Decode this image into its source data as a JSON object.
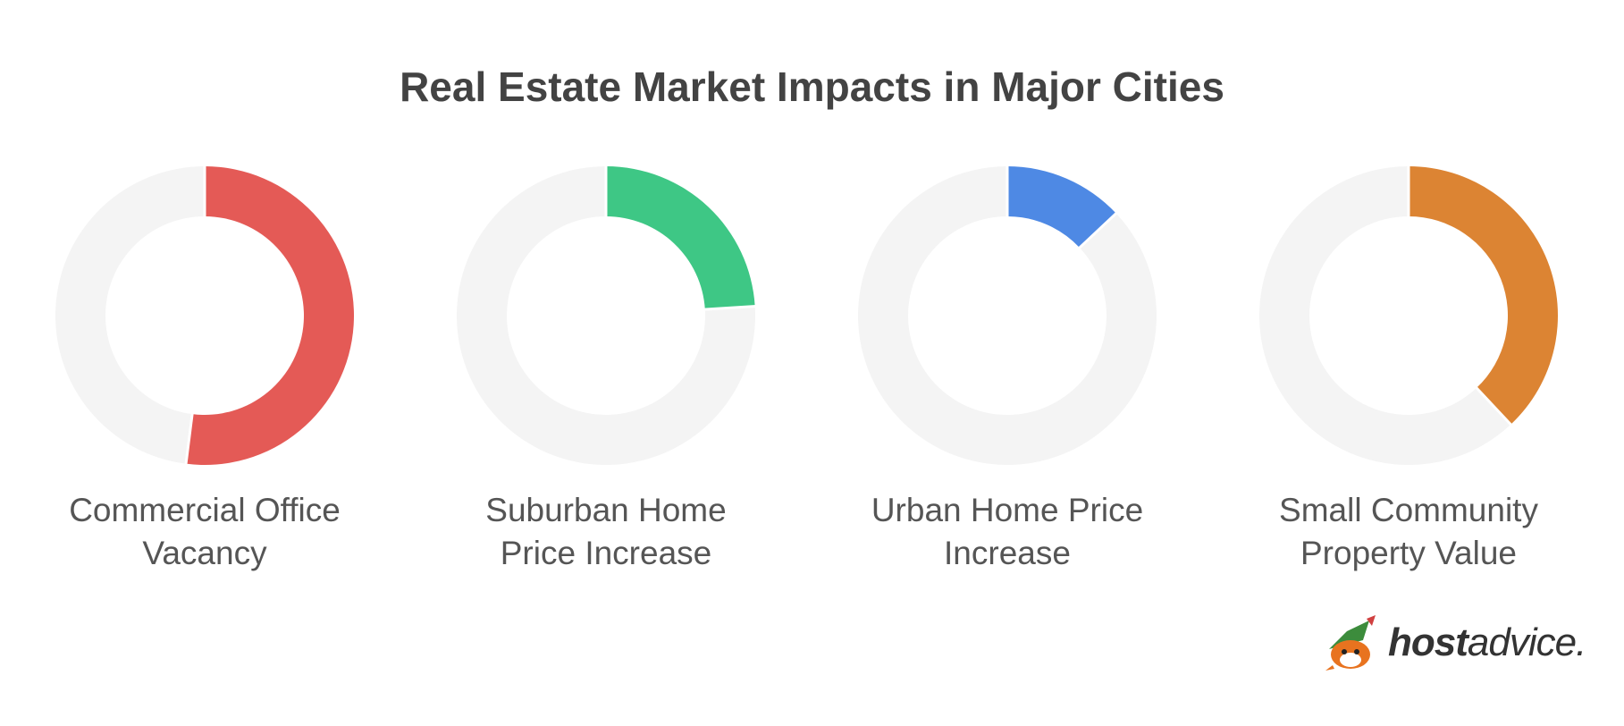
{
  "title": "Real Estate Market Impacts in Major Cities",
  "chart_data": [
    {
      "type": "pie",
      "label": "Commercial Office Vacancy",
      "value": 52,
      "color": "#E45A56",
      "track": "#F4F4F4"
    },
    {
      "type": "pie",
      "label": "Suburban Home Price Increase",
      "value": 24,
      "color": "#3EC785",
      "track": "#F4F4F4"
    },
    {
      "type": "pie",
      "label": "Urban Home Price Increase",
      "value": 13,
      "color": "#4E89E4",
      "track": "#F4F4F4"
    },
    {
      "type": "pie",
      "label": "Small Community Property Value",
      "value": 38,
      "color": "#DC8433",
      "track": "#F4F4F4"
    }
  ],
  "logo": {
    "bold": "host",
    "rest": "advice."
  }
}
